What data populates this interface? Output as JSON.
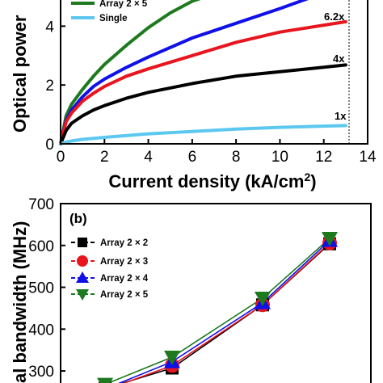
{
  "chart_data": [
    {
      "type": "line",
      "xlabel": "Current density (kA/cm",
      "xlabel_sup": "2",
      "xlabel_suffix": ")",
      "ylabel": "Optical power",
      "xlim": [
        0,
        14
      ],
      "ylim": [
        0,
        5
      ],
      "x_ticks": [
        "0",
        "2",
        "4",
        "6",
        "8",
        "10",
        "12",
        "14"
      ],
      "y_ticks": [
        "0",
        "2",
        "4"
      ],
      "grid": false,
      "legend_position": "top-left",
      "colors": {
        "green": "#1e7a1e",
        "blue": "#1010e8",
        "red": "#e8141e",
        "black": "#000000",
        "cyan": "#5cc8ef"
      },
      "series": [
        {
          "name": "Array 2 × 5",
          "color": "#1e7a1e",
          "x": [
            0,
            0.25,
            0.5,
            1,
            1.5,
            2,
            3,
            4,
            5,
            6,
            6.6
          ],
          "y": [
            0,
            0.95,
            1.35,
            1.85,
            2.3,
            2.7,
            3.35,
            3.95,
            4.45,
            4.85,
            5.0
          ]
        },
        {
          "name": "",
          "color": "#1010e8",
          "x": [
            0,
            0.25,
            0.5,
            1,
            1.5,
            2,
            3,
            4,
            6,
            8,
            10,
            11.5
          ],
          "y": [
            0,
            0.8,
            1.15,
            1.6,
            1.95,
            2.2,
            2.6,
            2.95,
            3.6,
            4.1,
            4.6,
            5.0
          ]
        },
        {
          "name": "",
          "color": "#e8141e",
          "x": [
            0,
            0.25,
            0.5,
            1,
            1.5,
            2,
            3,
            4,
            6,
            8,
            10,
            13
          ],
          "y": [
            0,
            0.75,
            1.05,
            1.45,
            1.72,
            1.95,
            2.3,
            2.55,
            3.0,
            3.45,
            3.8,
            4.15
          ]
        },
        {
          "name": "",
          "color": "#000000",
          "x": [
            0,
            0.25,
            0.5,
            1,
            1.5,
            2,
            3,
            4,
            6,
            8,
            10,
            13
          ],
          "y": [
            0,
            0.45,
            0.7,
            0.95,
            1.15,
            1.3,
            1.55,
            1.75,
            2.05,
            2.3,
            2.45,
            2.68
          ]
        },
        {
          "name": "Single",
          "color": "#5cc8ef",
          "x": [
            0,
            0.25,
            0.5,
            1,
            2,
            4,
            6,
            8,
            10,
            13
          ],
          "y": [
            0,
            0.06,
            0.1,
            0.15,
            0.22,
            0.34,
            0.42,
            0.5,
            0.56,
            0.62
          ]
        }
      ],
      "annotations": [
        "6.2x",
        "4x",
        "1x"
      ]
    },
    {
      "type": "line",
      "panel_label": "(b)",
      "ylabel": "al bandwidth (MHz)",
      "ylim": [
        250,
        700
      ],
      "y_ticks": [
        "300",
        "400",
        "500",
        "600",
        "700"
      ],
      "grid": false,
      "legend_position": "left",
      "series": [
        {
          "name": "Array 2 × 2",
          "color": "#000000",
          "marker": "square",
          "x": [
            1,
            2,
            3,
            4
          ],
          "y": [
            258,
            307,
            458,
            604
          ]
        },
        {
          "name": "Array 2 × 3",
          "color": "#e8141e",
          "marker": "circle",
          "x": [
            1,
            2,
            3,
            4
          ],
          "y": [
            254,
            313,
            458,
            606
          ]
        },
        {
          "name": "Array 2 × 4",
          "color": "#1010e8",
          "marker": "triangle-up",
          "x": [
            1,
            2,
            3,
            4
          ],
          "y": [
            257,
            322,
            463,
            612
          ]
        },
        {
          "name": "Array 2 × 5",
          "color": "#1e7a1e",
          "marker": "triangle-down",
          "x": [
            1,
            2,
            3,
            4
          ],
          "y": [
            268,
            333,
            474,
            617
          ]
        }
      ]
    }
  ]
}
